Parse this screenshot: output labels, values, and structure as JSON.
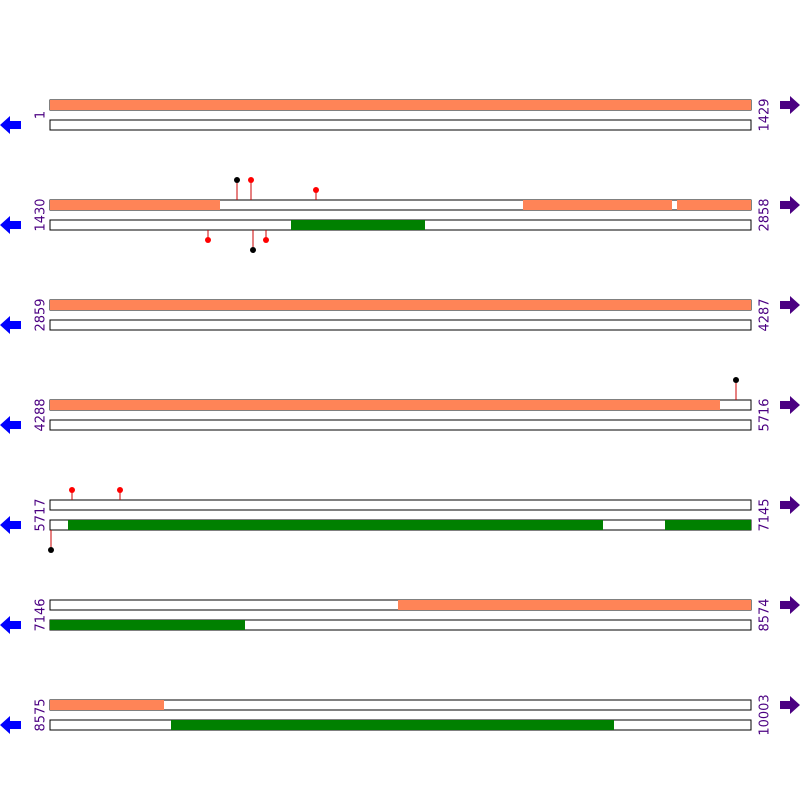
{
  "rows": [
    {
      "start": 1,
      "end": 1429
    },
    {
      "start": 1430,
      "end": 2858
    },
    {
      "start": 2859,
      "end": 4287
    },
    {
      "start": 4288,
      "end": 5716
    },
    {
      "start": 5717,
      "end": 7145
    },
    {
      "start": 7146,
      "end": 8574
    },
    {
      "start": 8575,
      "end": 10003
    }
  ]
}
